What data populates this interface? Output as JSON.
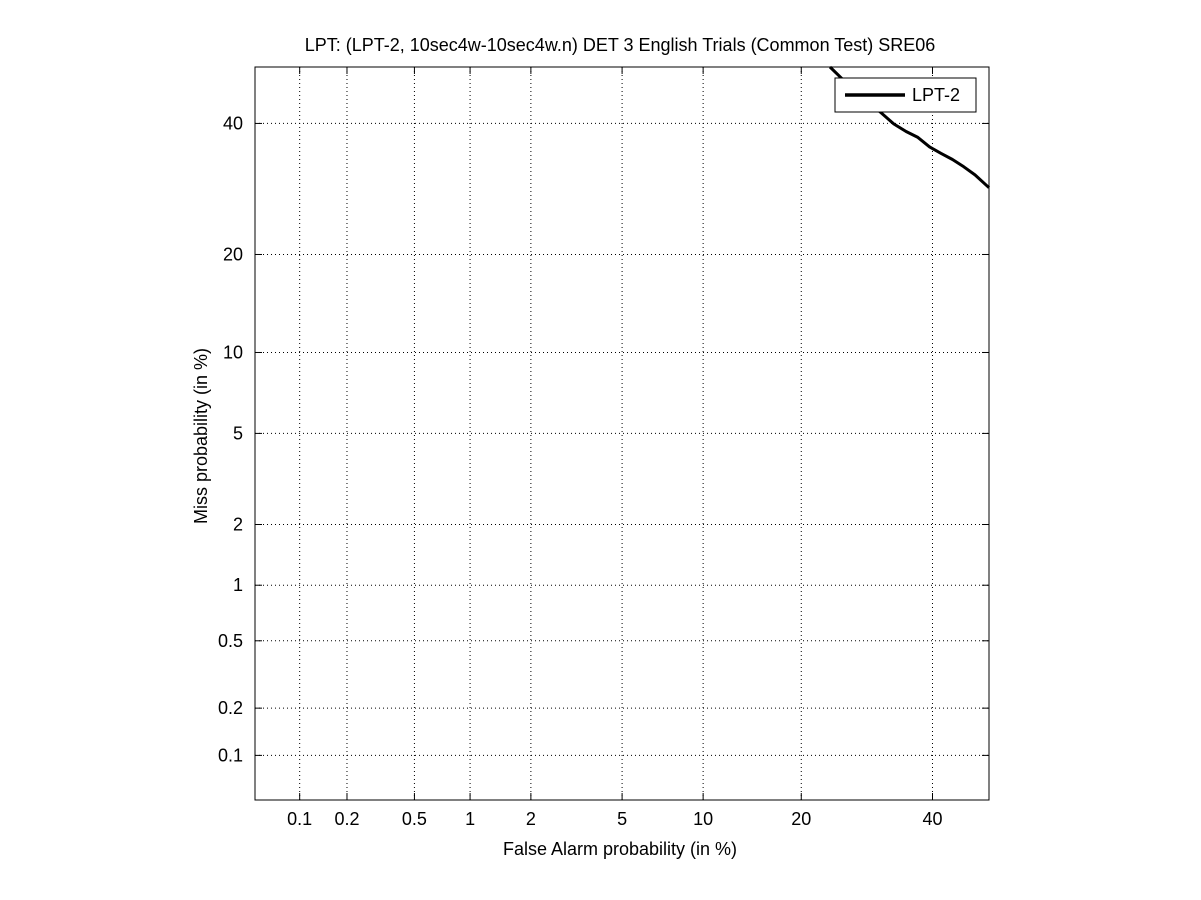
{
  "chart_data": {
    "type": "line",
    "title": "LPT: (LPT-2, 10sec4w-10sec4w.n) DET 3 English Trials (Common Test) SRE06",
    "xlabel": "False Alarm probability (in %)",
    "ylabel": "Miss probability (in %)",
    "scale": "normal-deviate (probit) on both axes",
    "xlim": [
      0.05,
      50
    ],
    "ylim": [
      0.05,
      50
    ],
    "x_ticks": [
      0.1,
      0.2,
      0.5,
      1,
      2,
      5,
      10,
      20,
      40
    ],
    "x_tick_labels": [
      "0.1",
      "0.2",
      "0.5",
      "1",
      "2",
      "5",
      "10",
      "20",
      "40"
    ],
    "y_ticks": [
      0.1,
      0.2,
      0.5,
      1,
      2,
      5,
      10,
      20,
      40
    ],
    "y_tick_labels": [
      "0.1",
      "0.2",
      "0.5",
      "1",
      "2",
      "5",
      "10",
      "20",
      "40"
    ],
    "grid": true,
    "legend_position": "top-right",
    "series": [
      {
        "name": "LPT-2",
        "color": "#000000",
        "x": [
          23.8,
          25.5,
          27.5,
          29.5,
          31.5,
          33.5,
          35.5,
          37.5,
          39.5,
          41.5,
          43.5,
          45.5,
          47.5,
          50.0
        ],
        "y": [
          50.0,
          47.9,
          45.7,
          43.7,
          41.8,
          39.9,
          38.6,
          37.6,
          36.0,
          34.9,
          33.9,
          32.7,
          31.4,
          29.4
        ]
      }
    ]
  }
}
